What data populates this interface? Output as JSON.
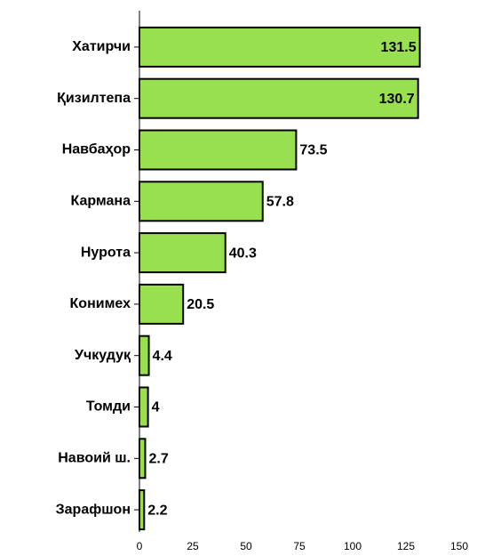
{
  "chart_data": {
    "type": "barh",
    "categories": [
      "Хатирчи",
      "Қизилтепа",
      "Навбаҳор",
      "Кармана",
      "Нурота",
      "Конимех",
      "Учкудуқ",
      "Томди",
      "Навоий ш.",
      "Зарафшон"
    ],
    "values": [
      131.5,
      130.7,
      73.5,
      57.8,
      40.3,
      20.5,
      4.4,
      4,
      2.7,
      2.2
    ],
    "color": "#99e050",
    "xlim": [
      0,
      150
    ],
    "xticks": [
      0,
      25,
      50,
      75,
      100,
      125,
      150
    ]
  }
}
